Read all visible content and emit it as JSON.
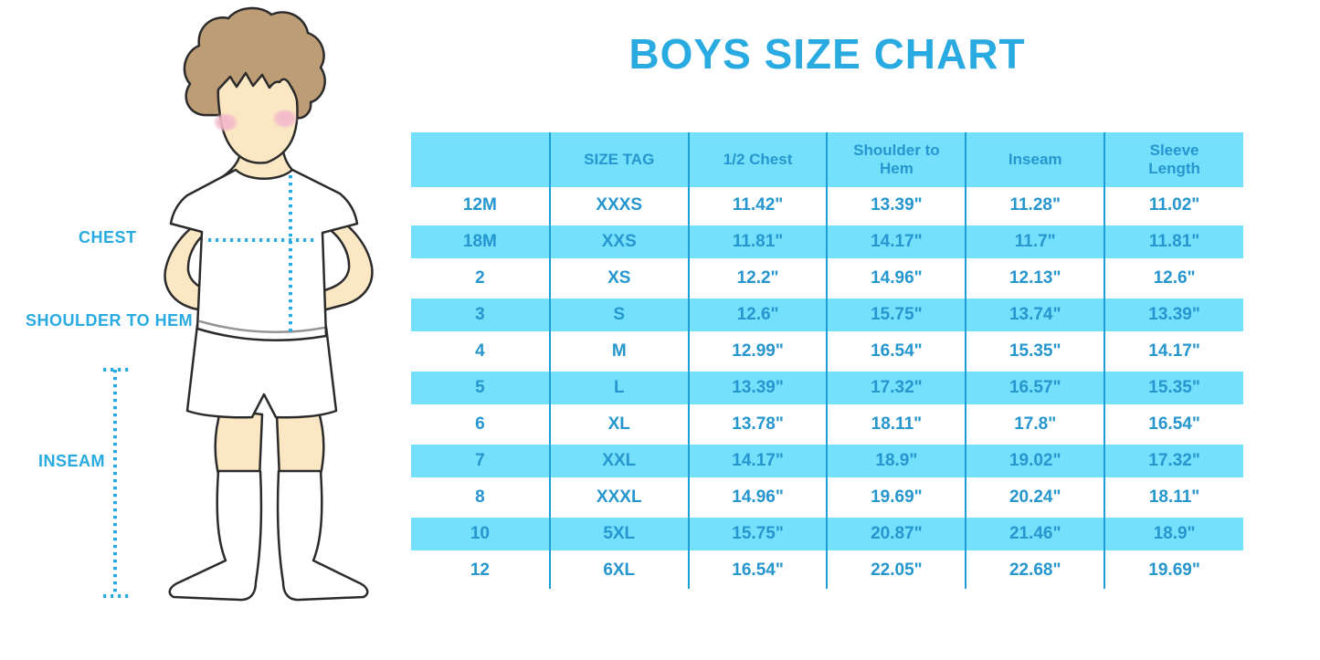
{
  "title": "BOYS SIZE CHART",
  "figure": {
    "description": "boy wearing white t-shirt, shorts and knee socks with measurement guides",
    "labels": {
      "chest": "CHEST",
      "shoulder_to_hem": "SHOULDER TO HEM",
      "inseam": "INSEAM"
    }
  },
  "colors": {
    "accent": "#29ABE2",
    "table_text": "#2596CE",
    "cyan": "#74E0FC",
    "divider": "#1C9ED6",
    "skin": "#FBE7C3",
    "hair": "#BC9D76",
    "blush": "#F2B9CB",
    "outline": "#2B2B2B"
  },
  "chart_data": {
    "type": "table",
    "title": "BOYS SIZE CHART",
    "columns": [
      "",
      "SIZE TAG",
      "1/2 Chest",
      "Shoulder to Hem",
      "Inseam",
      "Sleeve Length"
    ],
    "rows": [
      [
        "12M",
        "XXXS",
        "11.42\"",
        "13.39\"",
        "11.28\"",
        "11.02\""
      ],
      [
        "18M",
        "XXS",
        "11.81\"",
        "14.17\"",
        "11.7\"",
        "11.81\""
      ],
      [
        "2",
        "XS",
        "12.2\"",
        "14.96\"",
        "12.13\"",
        "12.6\""
      ],
      [
        "3",
        "S",
        "12.6\"",
        "15.75\"",
        "13.74\"",
        "13.39\""
      ],
      [
        "4",
        "M",
        "12.99\"",
        "16.54\"",
        "15.35\"",
        "14.17\""
      ],
      [
        "5",
        "L",
        "13.39\"",
        "17.32\"",
        "16.57\"",
        "15.35\""
      ],
      [
        "6",
        "XL",
        "13.78\"",
        "18.11\"",
        "17.8\"",
        "16.54\""
      ],
      [
        "7",
        "XXL",
        "14.17\"",
        "18.9\"",
        "19.02\"",
        "17.32\""
      ],
      [
        "8",
        "XXXL",
        "14.96\"",
        "19.69\"",
        "20.24\"",
        "18.11\""
      ],
      [
        "10",
        "5XL",
        "15.75\"",
        "20.87\"",
        "21.46\"",
        "18.9\""
      ],
      [
        "12",
        "6XL",
        "16.54\"",
        "22.05\"",
        "22.68\"",
        "19.69\""
      ]
    ]
  }
}
